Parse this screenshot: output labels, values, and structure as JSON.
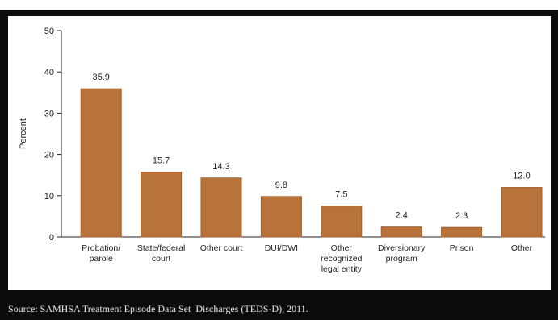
{
  "source_note": "Source: SAMHSA Treatment Episode Data Set–Discharges (TEDS-D), 2011.",
  "colors": {
    "bar": "#b8733a",
    "bar_edge": "#a05f2c",
    "frame": "#0b0b0b",
    "axis": "#222222"
  },
  "chart_data": {
    "type": "bar",
    "title": "",
    "xlabel": "",
    "ylabel": "Percent",
    "ylim": [
      0,
      50
    ],
    "yticks": [
      0,
      10,
      20,
      30,
      40,
      50
    ],
    "grid": false,
    "legend": "none",
    "categories": [
      [
        "Probation/",
        "parole"
      ],
      [
        "State/federal",
        "court"
      ],
      [
        "Other court"
      ],
      [
        "DUI/DWI"
      ],
      [
        "Other",
        "recognized",
        "legal entity"
      ],
      [
        "Diversionary",
        "program"
      ],
      [
        "Prison"
      ],
      [
        "Other"
      ]
    ],
    "values": [
      35.9,
      15.7,
      14.3,
      9.8,
      7.5,
      2.4,
      2.3,
      12.0
    ],
    "value_labels": [
      "35.9",
      "15.7",
      "14.3",
      "9.8",
      "7.5",
      "2.4",
      "2.3",
      "12.0"
    ]
  }
}
